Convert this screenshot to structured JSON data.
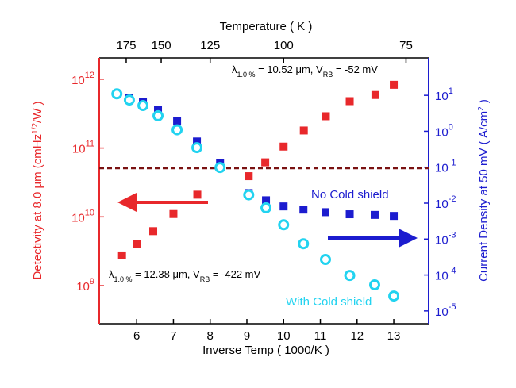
{
  "chart_data": {
    "type": "scatter",
    "x_label": "Inverse Temp ( 1000/K )",
    "x2_label": "Temperature ( K )",
    "y_label": [
      {
        "text": "Detectivity at 8.0 μm  (cmHz"
      },
      {
        "text": "1/2",
        "sup": true
      },
      {
        "text": "/W )"
      }
    ],
    "y2_label": [
      {
        "text": "Current Density at 50 mV ( A/cm"
      },
      {
        "text": "2",
        "sup": true
      },
      {
        "text": " )"
      }
    ],
    "xlim": [
      4.98,
      13.95
    ],
    "xticks": [
      6,
      7,
      8,
      9,
      10,
      11,
      12,
      13
    ],
    "x2_scale": "inverse_1000",
    "x2ticks": [
      175,
      150,
      125,
      100,
      75
    ],
    "log_y": true,
    "ylim": [
      280000000.0,
      2040000000000.0
    ],
    "yticks": [
      {
        "value": 1000000000.0,
        "label": "10",
        "sup": "9"
      },
      {
        "value": 10000000000.0,
        "label": "10",
        "sup": "10"
      },
      {
        "value": 100000000000.0,
        "label": "10",
        "sup": "11"
      },
      {
        "value": 1000000000000.0,
        "label": "10",
        "sup": "12"
      }
    ],
    "y_color": "#e8282b",
    "y2lim": [
      4.4e-06,
      110
    ],
    "y2ticks": [
      {
        "value": 1e-05,
        "label": "10",
        "sup": "-5"
      },
      {
        "value": 0.0001,
        "label": "10",
        "sup": "-4"
      },
      {
        "value": 0.001,
        "label": "10",
        "sup": "-3"
      },
      {
        "value": 0.01,
        "label": "10",
        "sup": "-2"
      },
      {
        "value": 0.1,
        "label": "10",
        "sup": "-1"
      },
      {
        "value": 1,
        "label": "10",
        "sup": "0"
      },
      {
        "value": 10,
        "label": "10",
        "sup": "1"
      }
    ],
    "y2_color": "#1c1ccf",
    "reference_line": {
      "value": 51000000000.0,
      "color": "#7a1212",
      "axis": "y"
    },
    "series": [
      {
        "color": "#e8282b",
        "marker": "square",
        "axis": "y",
        "x": [
          5.6,
          6.0,
          6.45,
          7.0,
          7.65,
          9.05,
          9.5,
          10.0,
          10.55,
          11.15,
          11.8,
          12.5,
          13.0
        ],
        "values": [
          2750000000.0,
          4000000000.0,
          6200000000.0,
          11000000000.0,
          21000000000.0,
          39000000000.0,
          62000000000.0,
          105000000000.0,
          180000000000.0,
          290000000000.0,
          480000000000.0,
          590000000000.0,
          830000000000.0
        ]
      },
      {
        "name": "No Cold shield",
        "color": "#1c1ccf",
        "marker": "square",
        "axis": "y2",
        "x": [
          5.46,
          5.8,
          6.17,
          6.58,
          7.1,
          7.64,
          8.27,
          9.05,
          9.52,
          10.0,
          10.54,
          11.14,
          11.8,
          12.48,
          13.0
        ],
        "values": [
          11,
          8.5,
          6.6,
          4.0,
          1.9,
          0.52,
          0.13,
          0.019,
          0.012,
          0.0081,
          0.0066,
          0.0056,
          0.0049,
          0.0047,
          0.0044
        ]
      },
      {
        "name": "With Cold shield",
        "color": "#22d3f0",
        "marker": "circle",
        "axis": "y2",
        "x": [
          5.46,
          5.8,
          6.17,
          6.58,
          7.1,
          7.64,
          8.27,
          9.05,
          9.52,
          10.0,
          10.54,
          11.14,
          11.8,
          12.48,
          13.0
        ],
        "values": [
          11,
          7.4,
          5.2,
          2.7,
          1.1,
          0.35,
          0.098,
          0.017,
          0.0074,
          0.0025,
          0.00074,
          0.00027,
          9.7e-05,
          5.3e-05,
          2.6e-05
        ]
      }
    ],
    "annotations": [
      [
        {
          "text": "λ"
        },
        {
          "text": "1.0 %",
          "sub": true
        },
        {
          "text": " = 10.52 μm, V"
        },
        {
          "text": "RB",
          "sub": true
        },
        {
          "text": " = -52 mV"
        }
      ],
      [
        {
          "text": "λ"
        },
        {
          "text": "1.0 %",
          "sub": true
        },
        {
          "text": " = 12.38 μm, V"
        },
        {
          "text": "RB",
          "sub": true
        },
        {
          "text": " = -422 mV"
        }
      ]
    ]
  }
}
